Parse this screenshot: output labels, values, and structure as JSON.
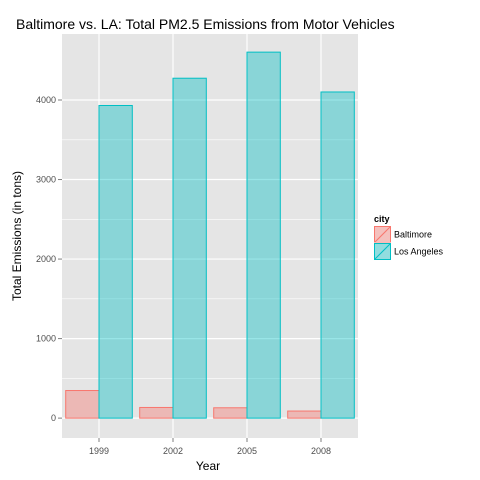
{
  "chart_data": {
    "type": "bar",
    "title": "Baltimore vs. LA: Total PM2.5 Emissions from Motor Vehicles",
    "xlabel": "Year",
    "ylabel": "Total Emissions (in tons)",
    "categories": [
      "1999",
      "2002",
      "2005",
      "2008"
    ],
    "series": [
      {
        "name": "Baltimore",
        "values": [
          347,
          134,
          130,
          89
        ],
        "fill": "#f8766d",
        "fill_opacity": 0.4,
        "stroke": "#f8766d"
      },
      {
        "name": "Los Angeles",
        "values": [
          3931,
          4274,
          4602,
          4101
        ],
        "fill": "#00bfc4",
        "fill_opacity": 0.4,
        "stroke": "#00bfc4"
      }
    ],
    "ylim": [
      -250,
      4830
    ],
    "yticks": [
      0,
      1000,
      2000,
      3000,
      4000
    ],
    "ytick_labels": [
      "0",
      "1000",
      "2000",
      "3000",
      "4000"
    ],
    "grid": true,
    "legend": {
      "title": "city",
      "position": "right"
    },
    "panel_color": "#e5e5e5",
    "grid_color": "#ffffff"
  }
}
